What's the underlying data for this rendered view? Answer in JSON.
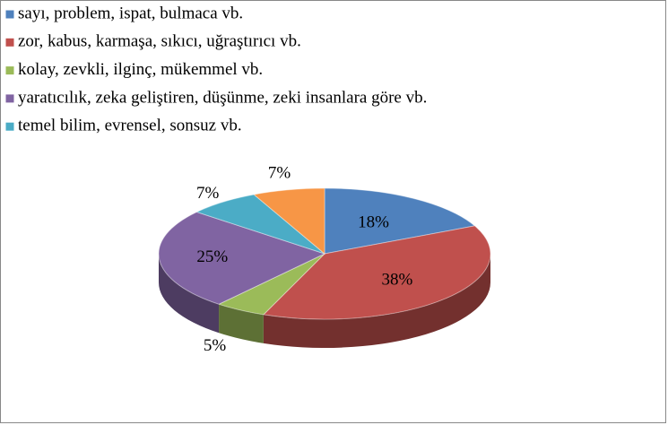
{
  "chart_data": {
    "type": "pie",
    "categories": [
      "sayı, problem, ispat, bulmaca vb.",
      "zor, kabus, karmaşa, sıkıcı, uğraştırıcı vb.",
      "kolay, zevkli, ilginç, mükemmel vb.",
      "yaratıcılık, zeka geliştiren, düşünme, zeki insanlara göre vb.",
      "temel bilim, evrensel, sonsuz vb.",
      null
    ],
    "values": [
      18,
      38,
      5,
      25,
      7,
      7
    ],
    "value_labels": [
      "18%",
      "38%",
      "5%",
      "25%",
      "7%",
      "7%"
    ],
    "colors": [
      "#4f81bd",
      "#c0504d",
      "#9bbb59",
      "#8064a2",
      "#4bacc6",
      "#f79646"
    ],
    "legend": "top-left"
  }
}
